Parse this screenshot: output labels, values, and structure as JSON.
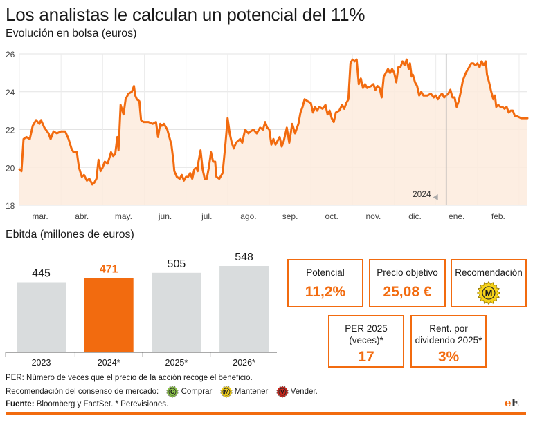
{
  "header": {
    "title": "Los analistas le calculan un potencial del 11%",
    "subtitle": "Evolución en bolsa (euros)"
  },
  "chart_data": [
    {
      "type": "line",
      "title": "Evolución en bolsa (euros)",
      "ylim": [
        18,
        26
      ],
      "yticks": [
        18,
        20,
        22,
        24,
        26
      ],
      "xlim": [
        0,
        12.2
      ],
      "month_labels": [
        "mar.",
        "abr.",
        "may.",
        "jun.",
        "jul.",
        "ago.",
        "sep.",
        "oct.",
        "nov.",
        "dic.",
        "ene.",
        "feb."
      ],
      "year_marker": {
        "label": "2024",
        "x": 10.25
      },
      "grid": true,
      "color": "#f26b0f",
      "series": [
        {
          "points": [
            [
              0.0,
              19.9
            ],
            [
              0.05,
              19.8
            ],
            [
              0.1,
              21.5
            ],
            [
              0.17,
              21.6
            ],
            [
              0.25,
              21.5
            ],
            [
              0.32,
              22.2
            ],
            [
              0.4,
              22.5
            ],
            [
              0.48,
              22.3
            ],
            [
              0.52,
              22.5
            ],
            [
              0.6,
              22.1
            ],
            [
              0.7,
              21.8
            ],
            [
              0.75,
              21.5
            ],
            [
              0.82,
              21.9
            ],
            [
              0.9,
              21.8
            ],
            [
              1.0,
              21.9
            ],
            [
              1.1,
              21.9
            ],
            [
              1.18,
              21.5
            ],
            [
              1.25,
              21.0
            ],
            [
              1.3,
              20.8
            ],
            [
              1.38,
              20.8
            ],
            [
              1.43,
              20.0
            ],
            [
              1.5,
              19.5
            ],
            [
              1.55,
              19.6
            ],
            [
              1.62,
              19.3
            ],
            [
              1.68,
              19.4
            ],
            [
              1.75,
              19.1
            ],
            [
              1.8,
              19.2
            ],
            [
              1.85,
              19.4
            ],
            [
              1.9,
              20.4
            ],
            [
              1.95,
              19.8
            ],
            [
              2.0,
              20.0
            ],
            [
              2.05,
              20.3
            ],
            [
              2.12,
              20.2
            ],
            [
              2.2,
              20.8
            ],
            [
              2.25,
              20.6
            ],
            [
              2.3,
              20.7
            ],
            [
              2.35,
              21.6
            ],
            [
              2.38,
              20.9
            ],
            [
              2.43,
              23.3
            ],
            [
              2.5,
              22.8
            ],
            [
              2.55,
              23.6
            ],
            [
              2.62,
              23.9
            ],
            [
              2.7,
              24.0
            ],
            [
              2.75,
              24.3
            ],
            [
              2.78,
              23.8
            ],
            [
              2.82,
              23.6
            ],
            [
              2.88,
              23.5
            ],
            [
              2.92,
              22.5
            ],
            [
              2.98,
              22.4
            ],
            [
              3.1,
              22.4
            ],
            [
              3.2,
              22.3
            ],
            [
              3.28,
              22.4
            ],
            [
              3.33,
              21.6
            ],
            [
              3.38,
              22.3
            ],
            [
              3.42,
              22.2
            ],
            [
              3.47,
              22.3
            ],
            [
              3.55,
              22.0
            ],
            [
              3.6,
              21.6
            ],
            [
              3.65,
              21.2
            ],
            [
              3.7,
              20.3
            ],
            [
              3.72,
              19.8
            ],
            [
              3.78,
              19.5
            ],
            [
              3.85,
              19.4
            ],
            [
              3.9,
              19.6
            ],
            [
              3.95,
              19.3
            ],
            [
              4.0,
              19.5
            ],
            [
              4.05,
              19.5
            ],
            [
              4.1,
              19.7
            ],
            [
              4.15,
              19.4
            ],
            [
              4.2,
              19.9
            ],
            [
              4.25,
              20.0
            ],
            [
              4.28,
              19.8
            ],
            [
              4.3,
              20.3
            ],
            [
              4.35,
              20.9
            ],
            [
              4.4,
              19.9
            ],
            [
              4.45,
              19.4
            ],
            [
              4.5,
              19.4
            ],
            [
              4.55,
              20.0
            ],
            [
              4.6,
              20.8
            ],
            [
              4.65,
              20.3
            ],
            [
              4.7,
              20.3
            ],
            [
              4.73,
              19.5
            ],
            [
              4.8,
              19.4
            ],
            [
              4.88,
              19.7
            ],
            [
              4.95,
              21.3
            ],
            [
              5.0,
              22.6
            ],
            [
              5.05,
              21.8
            ],
            [
              5.1,
              21.3
            ],
            [
              5.15,
              21.0
            ],
            [
              5.2,
              21.3
            ],
            [
              5.3,
              21.5
            ],
            [
              5.35,
              21.3
            ],
            [
              5.42,
              22.0
            ],
            [
              5.5,
              21.8
            ],
            [
              5.55,
              21.9
            ],
            [
              5.62,
              22.0
            ],
            [
              5.7,
              21.8
            ],
            [
              5.78,
              22.1
            ],
            [
              5.85,
              22.0
            ],
            [
              5.9,
              22.4
            ],
            [
              5.95,
              22.1
            ],
            [
              6.0,
              22.0
            ],
            [
              6.05,
              21.2
            ],
            [
              6.1,
              21.5
            ],
            [
              6.15,
              21.2
            ],
            [
              6.25,
              21.6
            ],
            [
              6.3,
              21.1
            ],
            [
              6.35,
              21.4
            ],
            [
              6.42,
              22.1
            ],
            [
              6.48,
              21.3
            ],
            [
              6.55,
              22.3
            ],
            [
              6.62,
              21.8
            ],
            [
              6.7,
              22.3
            ],
            [
              6.75,
              22.9
            ],
            [
              6.8,
              23.2
            ],
            [
              6.85,
              23.6
            ],
            [
              6.92,
              23.5
            ],
            [
              7.0,
              23.4
            ],
            [
              7.05,
              22.9
            ],
            [
              7.1,
              23.2
            ],
            [
              7.15,
              23.0
            ],
            [
              7.2,
              23.2
            ],
            [
              7.28,
              23.1
            ],
            [
              7.35,
              23.3
            ],
            [
              7.4,
              22.8
            ],
            [
              7.45,
              23.0
            ],
            [
              7.5,
              22.6
            ],
            [
              7.55,
              22.4
            ],
            [
              7.6,
              22.9
            ],
            [
              7.68,
              23.0
            ],
            [
              7.75,
              23.3
            ],
            [
              7.8,
              23.1
            ],
            [
              7.85,
              23.4
            ],
            [
              7.9,
              23.6
            ],
            [
              7.95,
              25.5
            ],
            [
              8.0,
              25.7
            ],
            [
              8.05,
              25.6
            ],
            [
              8.1,
              25.7
            ],
            [
              8.15,
              24.4
            ],
            [
              8.2,
              24.7
            ],
            [
              8.25,
              24.2
            ],
            [
              8.3,
              24.4
            ],
            [
              8.35,
              24.2
            ],
            [
              8.45,
              24.3
            ],
            [
              8.5,
              24.4
            ],
            [
              8.55,
              24.1
            ],
            [
              8.6,
              24.3
            ],
            [
              8.65,
              24.2
            ],
            [
              8.7,
              23.7
            ],
            [
              8.75,
              24.8
            ],
            [
              8.8,
              25.0
            ],
            [
              8.85,
              25.2
            ],
            [
              8.9,
              25.0
            ],
            [
              8.95,
              25.2
            ],
            [
              9.0,
              25.0
            ],
            [
              9.05,
              24.5
            ],
            [
              9.1,
              25.3
            ],
            [
              9.15,
              25.3
            ],
            [
              9.2,
              25.6
            ],
            [
              9.25,
              25.4
            ],
            [
              9.3,
              25.7
            ],
            [
              9.35,
              25.2
            ],
            [
              9.38,
              25.5
            ],
            [
              9.42,
              24.8
            ],
            [
              9.45,
              24.9
            ],
            [
              9.5,
              24.5
            ],
            [
              9.55,
              24.3
            ],
            [
              9.6,
              23.8
            ],
            [
              9.65,
              24.0
            ],
            [
              9.7,
              23.8
            ],
            [
              9.8,
              23.8
            ],
            [
              9.88,
              23.9
            ],
            [
              9.95,
              23.7
            ],
            [
              10.0,
              23.8
            ],
            [
              10.05,
              23.6
            ],
            [
              10.1,
              23.8
            ],
            [
              10.15,
              23.9
            ],
            [
              10.2,
              23.7
            ],
            [
              10.25,
              23.8
            ],
            [
              10.3,
              23.9
            ],
            [
              10.35,
              24.1
            ],
            [
              10.4,
              23.7
            ],
            [
              10.45,
              23.7
            ],
            [
              10.5,
              23.2
            ],
            [
              10.55,
              23.5
            ],
            [
              10.6,
              24.0
            ],
            [
              10.65,
              24.6
            ],
            [
              10.72,
              25.0
            ],
            [
              10.8,
              25.3
            ],
            [
              10.85,
              25.5
            ],
            [
              10.9,
              25.5
            ],
            [
              10.95,
              25.4
            ],
            [
              11.0,
              25.5
            ],
            [
              11.05,
              25.3
            ],
            [
              11.1,
              25.6
            ],
            [
              11.15,
              25.4
            ],
            [
              11.2,
              25.6
            ],
            [
              11.23,
              24.9
            ],
            [
              11.28,
              24.5
            ],
            [
              11.33,
              24.0
            ],
            [
              11.38,
              23.6
            ],
            [
              11.42,
              23.8
            ],
            [
              11.45,
              23.2
            ],
            [
              11.5,
              23.3
            ],
            [
              11.55,
              23.2
            ],
            [
              11.6,
              23.2
            ],
            [
              11.65,
              23.1
            ],
            [
              11.7,
              23.2
            ],
            [
              11.75,
              22.9
            ],
            [
              11.8,
              23.0
            ],
            [
              11.85,
              23.0
            ],
            [
              11.9,
              22.7
            ],
            [
              11.95,
              22.7
            ],
            [
              12.05,
              22.6
            ],
            [
              12.2,
              22.6
            ]
          ]
        }
      ]
    },
    {
      "type": "bar",
      "title": "Ebitda (millones de euros)",
      "categories": [
        "2023",
        "2024*",
        "2025*",
        "2026*"
      ],
      "values": [
        445,
        471,
        505,
        548
      ],
      "ylim": [
        0,
        548
      ],
      "colors": [
        "#d9dcdd",
        "#f26b0f",
        "#d9dcdd",
        "#d9dcdd"
      ],
      "highlight_text_color": "#f26b0f"
    }
  ],
  "ebitda": {
    "title": "Ebitda (millones de euros)"
  },
  "kpis": {
    "potencial": {
      "label": "Potencial",
      "value": "11,2%"
    },
    "precio": {
      "label": "Precio objetivo",
      "value": "25,08 €"
    },
    "recomendacion": {
      "label": "Recomendación",
      "seal_letter": "M"
    },
    "per": {
      "label_line1": "PER 2025",
      "label_line2": "(veces)*",
      "value": "17"
    },
    "dividendo": {
      "label_line1": "Rent. por",
      "label_line2": "dividendo 2025*",
      "value": "3%"
    }
  },
  "footer": {
    "per_note": "PER: Número de veces que el precio de la acción recoge el beneficio.",
    "reco_label": "Recomendación del consenso de mercado:",
    "legend": [
      {
        "letter": "C",
        "text": "Comprar",
        "color": "#8bc34a"
      },
      {
        "letter": "M",
        "text": "Mantener",
        "color": "#f6d31a"
      },
      {
        "letter": "V",
        "text": "Vender.",
        "color": "#c9271d"
      }
    ],
    "source_bold": "Fuente:",
    "source_text": " Bloomberg y FactSet. * Perevisiones.",
    "logo_e1": "e",
    "logo_e2": "E"
  }
}
